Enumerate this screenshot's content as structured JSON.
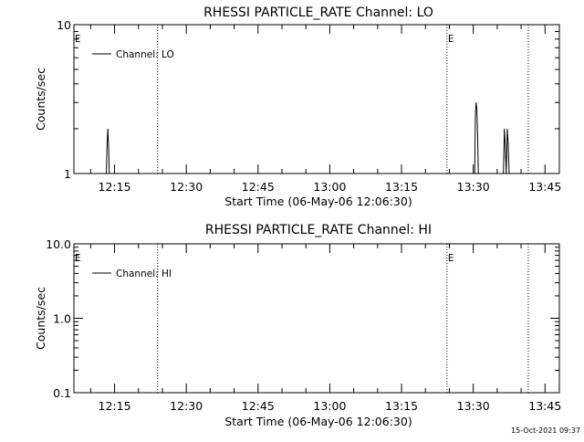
{
  "footer_timestamp": "15-Oct-2021 09:37",
  "chart_data": [
    {
      "type": "line",
      "title": "RHESSI PARTICLE_RATE Channel: LO",
      "xlabel": "Start Time (06-May-06 12:06:30)",
      "ylabel": "Counts/sec",
      "yscale": "log",
      "ylim": [
        1,
        10
      ],
      "ytick_values": [
        1,
        10
      ],
      "ytick_labels": [
        "1",
        "10"
      ],
      "xlim_minutes": [
        6.5,
        108
      ],
      "xtick_values": [
        15,
        30,
        45,
        60,
        75,
        90,
        105
      ],
      "xtick_labels": [
        "12:15",
        "12:30",
        "12:45",
        "13:00",
        "13:15",
        "13:30",
        "13:45"
      ],
      "legend": {
        "position": "top-left",
        "entries": [
          "Channel: LO"
        ]
      },
      "event_lines": [
        {
          "x": 24,
          "label": ""
        },
        {
          "x": 84.5,
          "label": "E"
        },
        {
          "x": 101.5,
          "label": ""
        }
      ],
      "start_marker_label": "E",
      "series": [
        {
          "name": "Channel: LO",
          "x": [
            13.3,
            13.45,
            13.6,
            13.75,
            13.9,
            90.3,
            90.45,
            90.6,
            90.75,
            90.9,
            91.05,
            96.3,
            96.5,
            96.7,
            96.9,
            97.1,
            97.3,
            97.5
          ],
          "y": [
            1,
            1.6,
            2.0,
            1.5,
            1,
            1,
            2.5,
            3.0,
            2.7,
            1.8,
            1,
            1,
            2.0,
            1.5,
            1,
            2.0,
            1.6,
            1
          ]
        }
      ]
    },
    {
      "type": "line",
      "title": "RHESSI PARTICLE_RATE Channel: HI",
      "xlabel": "Start Time (06-May-06 12:06:30)",
      "ylabel": "Counts/sec",
      "yscale": "log",
      "ylim": [
        0.1,
        10
      ],
      "ytick_values": [
        0.1,
        1,
        10
      ],
      "ytick_labels": [
        "0.1",
        "1.0",
        "10.0"
      ],
      "xlim_minutes": [
        6.5,
        108
      ],
      "xtick_values": [
        15,
        30,
        45,
        60,
        75,
        90,
        105
      ],
      "xtick_labels": [
        "12:15",
        "12:30",
        "12:45",
        "13:00",
        "13:15",
        "13:30",
        "13:45"
      ],
      "legend": {
        "position": "top-left",
        "entries": [
          "Channel: HI"
        ]
      },
      "event_lines": [
        {
          "x": 24,
          "label": ""
        },
        {
          "x": 84.5,
          "label": "E"
        },
        {
          "x": 101.5,
          "label": ""
        }
      ],
      "start_marker_label": "E",
      "series": [
        {
          "name": "Channel: HI",
          "x": [],
          "y": []
        }
      ]
    }
  ]
}
